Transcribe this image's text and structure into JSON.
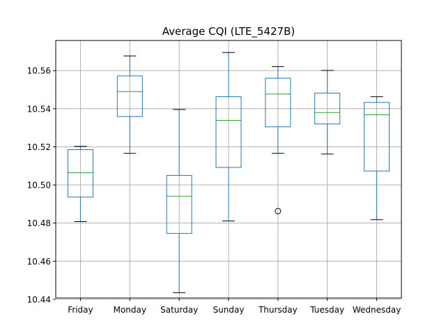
{
  "chart_data": {
    "type": "box",
    "title": "Average CQI (LTE_5427B)",
    "xlabel": "",
    "ylabel": "",
    "ylim": [
      10.4407,
      10.5758
    ],
    "yticks": [
      "10.44",
      "10.46",
      "10.48",
      "10.50",
      "10.52",
      "10.54",
      "10.56"
    ],
    "grid": true,
    "colors": {
      "box": "#1f77b4",
      "median": "#2ca02c",
      "whisker_cap": "#000000",
      "grid": "#b0b0b0"
    },
    "categories": [
      "Friday",
      "Monday",
      "Saturday",
      "Sunday",
      "Thursday",
      "Tuesday",
      "Wednesday"
    ],
    "boxes": [
      {
        "label": "Friday",
        "whislo": 10.4808,
        "q1": 10.4937,
        "median": 10.5064,
        "q3": 10.5185,
        "whishi": 10.5203,
        "fliers": []
      },
      {
        "label": "Monday",
        "whislo": 10.5166,
        "q1": 10.5359,
        "median": 10.549,
        "q3": 10.5572,
        "whishi": 10.5677,
        "fliers": []
      },
      {
        "label": "Saturday",
        "whislo": 10.4435,
        "q1": 10.4746,
        "median": 10.4941,
        "q3": 10.505,
        "whishi": 10.5396,
        "fliers": []
      },
      {
        "label": "Sunday",
        "whislo": 10.4811,
        "q1": 10.5092,
        "median": 10.5339,
        "q3": 10.5463,
        "whishi": 10.5695,
        "fliers": []
      },
      {
        "label": "Thursday",
        "whislo": 10.5166,
        "q1": 10.5305,
        "median": 10.5477,
        "q3": 10.556,
        "whishi": 10.5621,
        "fliers": [
          10.4863
        ]
      },
      {
        "label": "Tuesday",
        "whislo": 10.5162,
        "q1": 10.532,
        "median": 10.538,
        "q3": 10.5482,
        "whishi": 10.5601,
        "fliers": []
      },
      {
        "label": "Wednesday",
        "whislo": 10.4818,
        "q1": 10.5073,
        "median": 10.5368,
        "q3": 10.5433,
        "whishi": 10.5463,
        "fliers": []
      }
    ]
  }
}
